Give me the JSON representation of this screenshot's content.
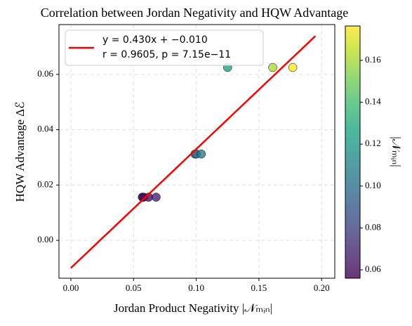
{
  "chart_data": {
    "type": "scatter",
    "title": "Correlation between Jordan Negativity and HQW Advantage",
    "x_label": "Jordan Product Negativity |𝒩ₘᵢₙ|",
    "y_label": "HQW Advantage Δℰ",
    "xlim": [
      -0.0095,
      0.2105
    ],
    "ylim": [
      -0.0137,
      0.078
    ],
    "xticks": [
      {
        "value": 0,
        "label": "0.00"
      },
      {
        "value": 0.05,
        "label": "0.05"
      },
      {
        "value": 0.1,
        "label": "0.10"
      },
      {
        "value": 0.15,
        "label": "0.15"
      },
      {
        "value": 0.2,
        "label": "0.20"
      }
    ],
    "yticks": [
      {
        "value": 0,
        "label": "0.00"
      },
      {
        "value": 0.02,
        "label": "0.02"
      },
      {
        "value": 0.04,
        "label": "0.04"
      },
      {
        "value": 0.06,
        "label": "0.06"
      }
    ],
    "grid": true,
    "legend": "upper left",
    "series": [
      {
        "type": "scatter",
        "x": [
          0.057,
          0.058,
          0.062,
          0.068,
          0.099,
          0.1,
          0.104,
          0.125,
          0.161,
          0.177
        ],
        "values": [
          0.0156,
          0.0156,
          0.0156,
          0.0156,
          0.0312,
          0.0312,
          0.0312,
          0.0625,
          0.0625,
          0.0625
        ]
      },
      {
        "type": "line",
        "name": "y = 0.430x + −0.010",
        "stats": "r = 0.9605,  p = 7.15e−11",
        "color": "#ff0000",
        "x": [
          0,
          0.195
        ],
        "values": [
          -0.01,
          0.07385
        ]
      }
    ],
    "colorbar": {
      "label": "|𝒩ₘᵢₙ|",
      "colormap": "viridis",
      "lim": [
        0.056,
        0.1764
      ],
      "ticks": [
        {
          "value": 0.06,
          "label": "0.06"
        },
        {
          "value": 0.08,
          "label": "0.08"
        },
        {
          "value": 0.1,
          "label": "0.10"
        },
        {
          "value": 0.12,
          "label": "0.12"
        },
        {
          "value": 0.14,
          "label": "0.14"
        },
        {
          "value": 0.16,
          "label": "0.16"
        }
      ]
    }
  }
}
